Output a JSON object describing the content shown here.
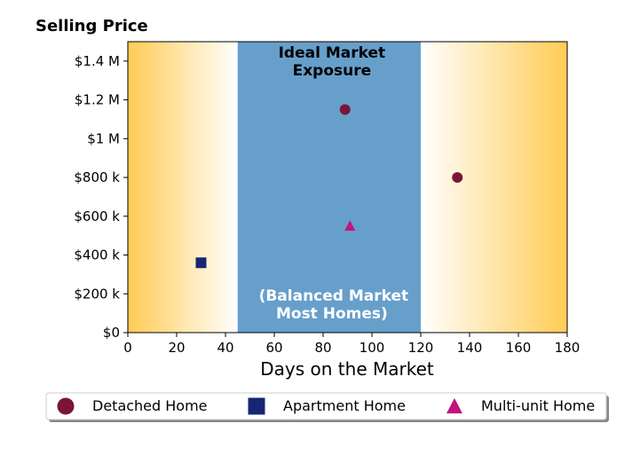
{
  "chart_data": {
    "type": "scatter",
    "title": "Selling Price",
    "xlabel": "Days on the Market",
    "ylabel": "",
    "xlim": [
      0,
      180
    ],
    "ylim": [
      0,
      1500000
    ],
    "x_ticks": [
      0,
      20,
      40,
      60,
      80,
      100,
      120,
      140,
      160,
      180
    ],
    "x_tick_labels": [
      "0",
      "20",
      "40",
      "60",
      "80",
      "100",
      "120",
      "140",
      "160",
      "180"
    ],
    "y_ticks": [
      0,
      200000,
      400000,
      600000,
      800000,
      1000000,
      1200000,
      1400000
    ],
    "y_tick_labels": [
      "$0",
      "$200 k",
      "$400 k",
      "$600 k",
      "$800 k",
      "$1 M",
      "$1.2 M",
      "$1.4 M"
    ],
    "ideal_band": {
      "x_start": 45,
      "x_end": 120,
      "color": "#679fcb"
    },
    "gradient_color": "#ffcc55",
    "annotations": {
      "band_top_line1": "Ideal Market",
      "band_top_line2": "Exposure",
      "band_bottom_line1": "(Balanced Market",
      "band_bottom_line2": "Most Homes)"
    },
    "series": [
      {
        "name": "Detached Home",
        "marker": "circle",
        "color": "#7b1538",
        "points": [
          {
            "x": 89,
            "y": 1150000
          },
          {
            "x": 135,
            "y": 800000
          }
        ]
      },
      {
        "name": "Apartment Home",
        "marker": "square",
        "color": "#172673",
        "points": [
          {
            "x": 30,
            "y": 360000
          }
        ]
      },
      {
        "name": "Multi-unit Home",
        "marker": "triangle",
        "color": "#c3137f",
        "points": [
          {
            "x": 91,
            "y": 550000
          }
        ]
      }
    ],
    "legend_position": "bottom",
    "grid": false
  }
}
